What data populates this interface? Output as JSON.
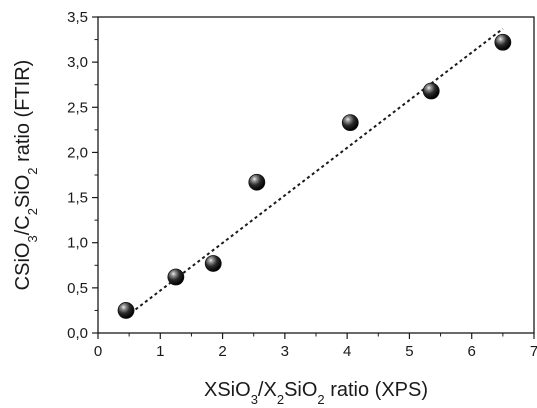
{
  "chart_data": {
    "type": "scatter",
    "xlabel": {
      "segments": [
        {
          "text": "XSiO",
          "sub": false
        },
        {
          "text": "3",
          "sub": true
        },
        {
          "text": "/X",
          "sub": false
        },
        {
          "text": "2",
          "sub": true
        },
        {
          "text": "SiO",
          "sub": false
        },
        {
          "text": "2",
          "sub": true
        },
        {
          "text": " ratio (XPS)",
          "sub": false
        }
      ]
    },
    "ylabel": {
      "segments": [
        {
          "text": "CSiO",
          "sub": false
        },
        {
          "text": "3",
          "sub": true
        },
        {
          "text": "/C",
          "sub": false
        },
        {
          "text": "2",
          "sub": true
        },
        {
          "text": "SiO",
          "sub": false
        },
        {
          "text": "2",
          "sub": true
        },
        {
          "text": " ratio (FTIR)",
          "sub": false
        }
      ]
    },
    "xlim": [
      0,
      7
    ],
    "ylim": [
      0,
      3.5
    ],
    "xticks": [
      {
        "value": 0,
        "label": "0"
      },
      {
        "value": 1,
        "label": "1"
      },
      {
        "value": 2,
        "label": "2"
      },
      {
        "value": 3,
        "label": "3"
      },
      {
        "value": 4,
        "label": "4"
      },
      {
        "value": 5,
        "label": "5"
      },
      {
        "value": 6,
        "label": "6"
      },
      {
        "value": 7,
        "label": "7"
      }
    ],
    "yticks": [
      {
        "value": 0,
        "label": "0,0"
      },
      {
        "value": 0.5,
        "label": "0,5"
      },
      {
        "value": 1.0,
        "label": "1,0"
      },
      {
        "value": 1.5,
        "label": "1,5"
      },
      {
        "value": 2.0,
        "label": "2,0"
      },
      {
        "value": 2.5,
        "label": "2,5"
      },
      {
        "value": 3.0,
        "label": "3,0"
      },
      {
        "value": 3.5,
        "label": "3,5"
      }
    ],
    "points": [
      {
        "x": 0.45,
        "y": 0.25
      },
      {
        "x": 1.25,
        "y": 0.62
      },
      {
        "x": 1.85,
        "y": 0.77
      },
      {
        "x": 2.55,
        "y": 1.67
      },
      {
        "x": 4.05,
        "y": 2.33
      },
      {
        "x": 5.35,
        "y": 2.68
      },
      {
        "x": 6.5,
        "y": 3.22
      }
    ],
    "fit_line": {
      "style": "dotted",
      "x": [
        0.45,
        6.5
      ],
      "y": [
        0.18,
        3.37
      ]
    },
    "marker_color": "#111111",
    "grid": false,
    "legend": "none"
  }
}
